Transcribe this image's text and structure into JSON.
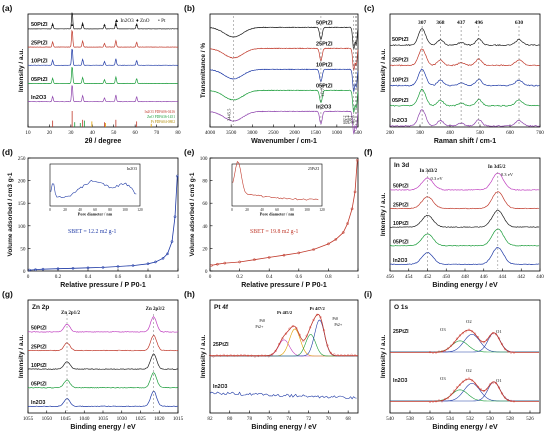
{
  "figure": {
    "panel_letters": [
      "(a)",
      "(b)",
      "(c)",
      "(d)",
      "(e)",
      "(f)",
      "(g)",
      "(h)",
      "(i)"
    ]
  },
  "chart_data": [
    {
      "id": "a",
      "type": "line",
      "title": "",
      "xlabel": "2θ / degree",
      "ylabel": "Intensity / a.u.",
      "xlim": [
        10,
        80
      ],
      "xticks": [
        10,
        20,
        30,
        40,
        50,
        60,
        70,
        80
      ],
      "legend": [
        "In2O3",
        "ZnO",
        "Pt"
      ],
      "legend_position": "top-right",
      "series": [
        {
          "name": "50PtZI",
          "color": "#1a1a1a",
          "offset": 4,
          "peaks": [
            [
              21.5,
              0.3
            ],
            [
              30.6,
              1.0
            ],
            [
              35.5,
              0.35
            ],
            [
              45.7,
              0.22
            ],
            [
              51.0,
              0.38
            ],
            [
              60.7,
              0.28
            ]
          ]
        },
        {
          "name": "25PtZI",
          "color": "#c0392b",
          "offset": 3,
          "peaks": [
            [
              21.5,
              0.3
            ],
            [
              30.6,
              1.0
            ],
            [
              35.5,
              0.35
            ],
            [
              45.7,
              0.22
            ],
            [
              51.0,
              0.38
            ],
            [
              60.7,
              0.28
            ]
          ]
        },
        {
          "name": "10PtZI",
          "color": "#1f3aa6",
          "offset": 2,
          "peaks": [
            [
              21.5,
              0.3
            ],
            [
              30.6,
              1.0
            ],
            [
              35.5,
              0.35
            ],
            [
              45.7,
              0.22
            ],
            [
              51.0,
              0.38
            ],
            [
              60.7,
              0.28
            ]
          ]
        },
        {
          "name": "05PtZI",
          "color": "#1a9c3a",
          "offset": 1,
          "peaks": [
            [
              21.5,
              0.3
            ],
            [
              30.6,
              1.0
            ],
            [
              35.5,
              0.35
            ],
            [
              45.7,
              0.22
            ],
            [
              51.0,
              0.38
            ],
            [
              60.7,
              0.28
            ]
          ]
        },
        {
          "name": "In2O3",
          "color": "#8e44ad",
          "offset": 0,
          "peaks": [
            [
              21.5,
              0.3
            ],
            [
              30.6,
              1.0
            ],
            [
              35.5,
              0.35
            ],
            [
              45.7,
              0.22
            ],
            [
              51.0,
              0.38
            ],
            [
              60.7,
              0.28
            ]
          ]
        }
      ],
      "reference_labels": [
        "In2O3 PDF#06-0416",
        "ZnO PDF#36-1451",
        "Pt PDF#04-0802"
      ]
    },
    {
      "id": "b",
      "type": "line",
      "title": "",
      "xlabel": "Wavenumber / cm-1",
      "ylabel": "Transmittance / %",
      "xlim": [
        4000,
        500
      ],
      "xticks": [
        4000,
        3500,
        3000,
        2500,
        2000,
        1500,
        1000,
        500
      ],
      "annotations": [
        "3445.5",
        "1377.2",
        "602.2",
        "565.4",
        "538.1",
        "412.5"
      ],
      "series": [
        {
          "name": "50PtZI",
          "color": "#1a1a1a"
        },
        {
          "name": "25PtZI",
          "color": "#c0392b"
        },
        {
          "name": "10PtZI",
          "color": "#1f3aa6"
        },
        {
          "name": "05PtZI",
          "color": "#1a9c3a"
        },
        {
          "name": "In2O3",
          "color": "#8e44ad"
        }
      ]
    },
    {
      "id": "c",
      "type": "line",
      "title": "",
      "xlabel": "Raman shift / cm-1",
      "ylabel": "Intensity / a.u.",
      "xlim": [
        200,
        700
      ],
      "xticks": [
        200,
        300,
        400,
        500,
        600,
        700
      ],
      "peak_labels": [
        307,
        368,
        437,
        496,
        630
      ],
      "series": [
        {
          "name": "50PtZI",
          "color": "#1a1a1a"
        },
        {
          "name": "25PtZI",
          "color": "#c0392b"
        },
        {
          "name": "10PtZI",
          "color": "#1f3aa6"
        },
        {
          "name": "05PtZI",
          "color": "#1a9c3a"
        },
        {
          "name": "In2O3",
          "color": "#8e44ad"
        }
      ]
    },
    {
      "id": "d",
      "type": "line",
      "title": "",
      "xlabel": "Relative pressure / P P0-1",
      "ylabel": "Volume adsorbed / cm3 g-1",
      "xlim": [
        0,
        1.0
      ],
      "ylim": [
        0,
        250
      ],
      "xticks": [
        0,
        0.2,
        0.4,
        0.6,
        0.8,
        1.0
      ],
      "yticks": [
        0,
        50,
        100,
        150,
        200,
        250
      ],
      "annotation": "SBET = 12.2 m2 g-1",
      "inset": {
        "legend": "In2O3",
        "xlabel": "Pore diameter / nm",
        "ylabel": "dV/dD",
        "xlim": [
          0,
          120
        ],
        "xticks": [
          0,
          20,
          40,
          60,
          80,
          100,
          120
        ]
      },
      "series": [
        {
          "name": "In2O3",
          "color": "#1f3aa6",
          "x": [
            0.01,
            0.05,
            0.1,
            0.2,
            0.3,
            0.4,
            0.5,
            0.6,
            0.7,
            0.8,
            0.85,
            0.9,
            0.93,
            0.96,
            0.98,
            0.995
          ],
          "y": [
            2,
            3,
            4,
            5,
            6,
            7,
            8,
            10,
            12,
            16,
            20,
            28,
            38,
            65,
            120,
            210
          ]
        }
      ]
    },
    {
      "id": "e",
      "type": "line",
      "title": "",
      "xlabel": "Relative pressure / P P0-1",
      "ylabel": "Volume adsorbed / cm3 g-1",
      "xlim": [
        0,
        1.0
      ],
      "ylim": [
        0,
        100
      ],
      "xticks": [
        0,
        0.2,
        0.4,
        0.6,
        0.8,
        1.0
      ],
      "yticks": [
        0,
        20,
        40,
        60,
        80,
        100
      ],
      "annotation": "SBET = 19.8 m2 g-1",
      "inset": {
        "legend": "25PtZI",
        "xlabel": "Pore diameter / nm",
        "ylabel": "dV/dD",
        "xlim": [
          0,
          120
        ],
        "xticks": [
          0,
          20,
          40,
          60,
          80,
          100,
          120
        ]
      },
      "series": [
        {
          "name": "25PtZI",
          "color": "#c0392b",
          "x": [
            0.01,
            0.05,
            0.1,
            0.2,
            0.3,
            0.4,
            0.5,
            0.6,
            0.7,
            0.8,
            0.85,
            0.9,
            0.93,
            0.96,
            0.98,
            0.995
          ],
          "y": [
            5,
            6,
            7,
            8,
            10,
            12,
            14,
            16,
            19,
            24,
            28,
            34,
            42,
            55,
            70,
            98
          ]
        }
      ]
    },
    {
      "id": "f",
      "type": "line",
      "title": "In 3d",
      "xlabel": "Binding energy / eV",
      "ylabel": "Intensity / a.u.",
      "xlim": [
        456,
        440
      ],
      "xticks": [
        456,
        454,
        452,
        450,
        448,
        446,
        444,
        442,
        440
      ],
      "annotations": [
        "In 3d3/2",
        "In 3d5/2",
        "0.3 eV",
        "0.3 eV"
      ],
      "series": [
        {
          "name": "50PtZI",
          "color": "#c040c0"
        },
        {
          "name": "25PtZI",
          "color": "#c0392b"
        },
        {
          "name": "10PtZI",
          "color": "#1a1a1a"
        },
        {
          "name": "05PtZI",
          "color": "#1a9c3a"
        },
        {
          "name": "In2O3",
          "color": "#1f3aa6"
        }
      ]
    },
    {
      "id": "g",
      "type": "line",
      "title": "Zn 2p",
      "xlabel": "Binding energy / eV",
      "ylabel": "Intensity / a.u.",
      "xlim": [
        1055,
        1015
      ],
      "xticks": [
        1055,
        1050,
        1045,
        1040,
        1035,
        1030,
        1025,
        1020,
        1015
      ],
      "annotations": [
        "Zn 2p1/2",
        "Zn 2p3/2"
      ],
      "series": [
        {
          "name": "50PtZI",
          "color": "#c040c0"
        },
        {
          "name": "25PtZI",
          "color": "#c0392b"
        },
        {
          "name": "10PtZI",
          "color": "#1a1a1a"
        },
        {
          "name": "05PtZI",
          "color": "#1a9c3a"
        },
        {
          "name": "In2O3",
          "color": "#1f3aa6"
        }
      ]
    },
    {
      "id": "h",
      "type": "line",
      "title": "Pt 4f",
      "xlabel": "Binding energy / eV",
      "ylabel": "Intensity / a.u.",
      "xlim": [
        82,
        67
      ],
      "xticks": [
        82,
        80,
        78,
        76,
        74,
        72,
        70,
        68
      ],
      "annotations": [
        "Pt 4f5/2",
        "Pt 4f7/2",
        "Pt0",
        "Pt2+",
        "Pt0",
        "Pt2+"
      ],
      "series": [
        {
          "name": "25PtZI",
          "color": "#c0392b"
        },
        {
          "name": "In2O3",
          "color": "#1f3aa6"
        }
      ]
    },
    {
      "id": "i",
      "type": "line",
      "title": "O 1s",
      "xlabel": "Binding energy / eV",
      "ylabel": "Intensity / a.u.",
      "xlim": [
        540,
        525
      ],
      "xticks": [
        540,
        538,
        536,
        534,
        532,
        530,
        528,
        526
      ],
      "annotations": [
        "O3",
        "O2",
        "O1",
        "O3",
        "O2",
        "O1"
      ],
      "series": [
        {
          "name": "25PtZI",
          "color": "#c0392b"
        },
        {
          "name": "In2O3",
          "color": "#c0392b"
        }
      ]
    }
  ]
}
